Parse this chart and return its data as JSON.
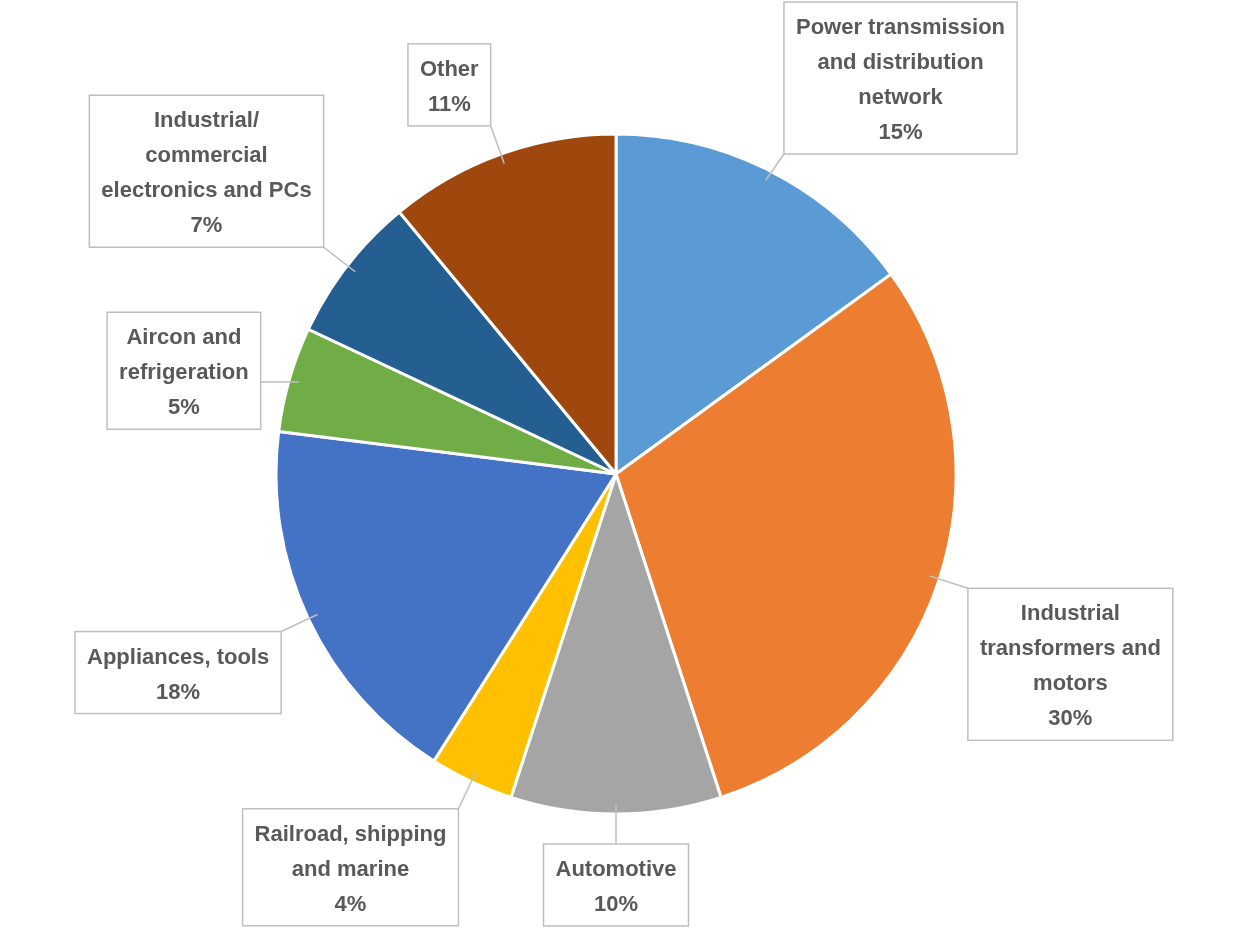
{
  "chart_data": {
    "type": "pie",
    "categories": [
      "Power transmission and distribution network",
      "Industrial transformers and motors",
      "Automotive",
      "Railroad, shipping and marine",
      "Appliances, tools",
      "Aircon and refrigeration",
      "Industrial/ commercial electronics and PCs",
      "Other"
    ],
    "values": [
      15,
      30,
      10,
      4,
      18,
      5,
      7,
      11
    ],
    "value_labels": [
      "15%",
      "30%",
      "10%",
      "4%",
      "18%",
      "5%",
      "7%",
      "11%"
    ],
    "colors": [
      "#5b9bd5",
      "#ed7d31",
      "#a5a5a5",
      "#ffc000",
      "#4472c4",
      "#70ad47",
      "#255e91",
      "#9e480e"
    ]
  }
}
